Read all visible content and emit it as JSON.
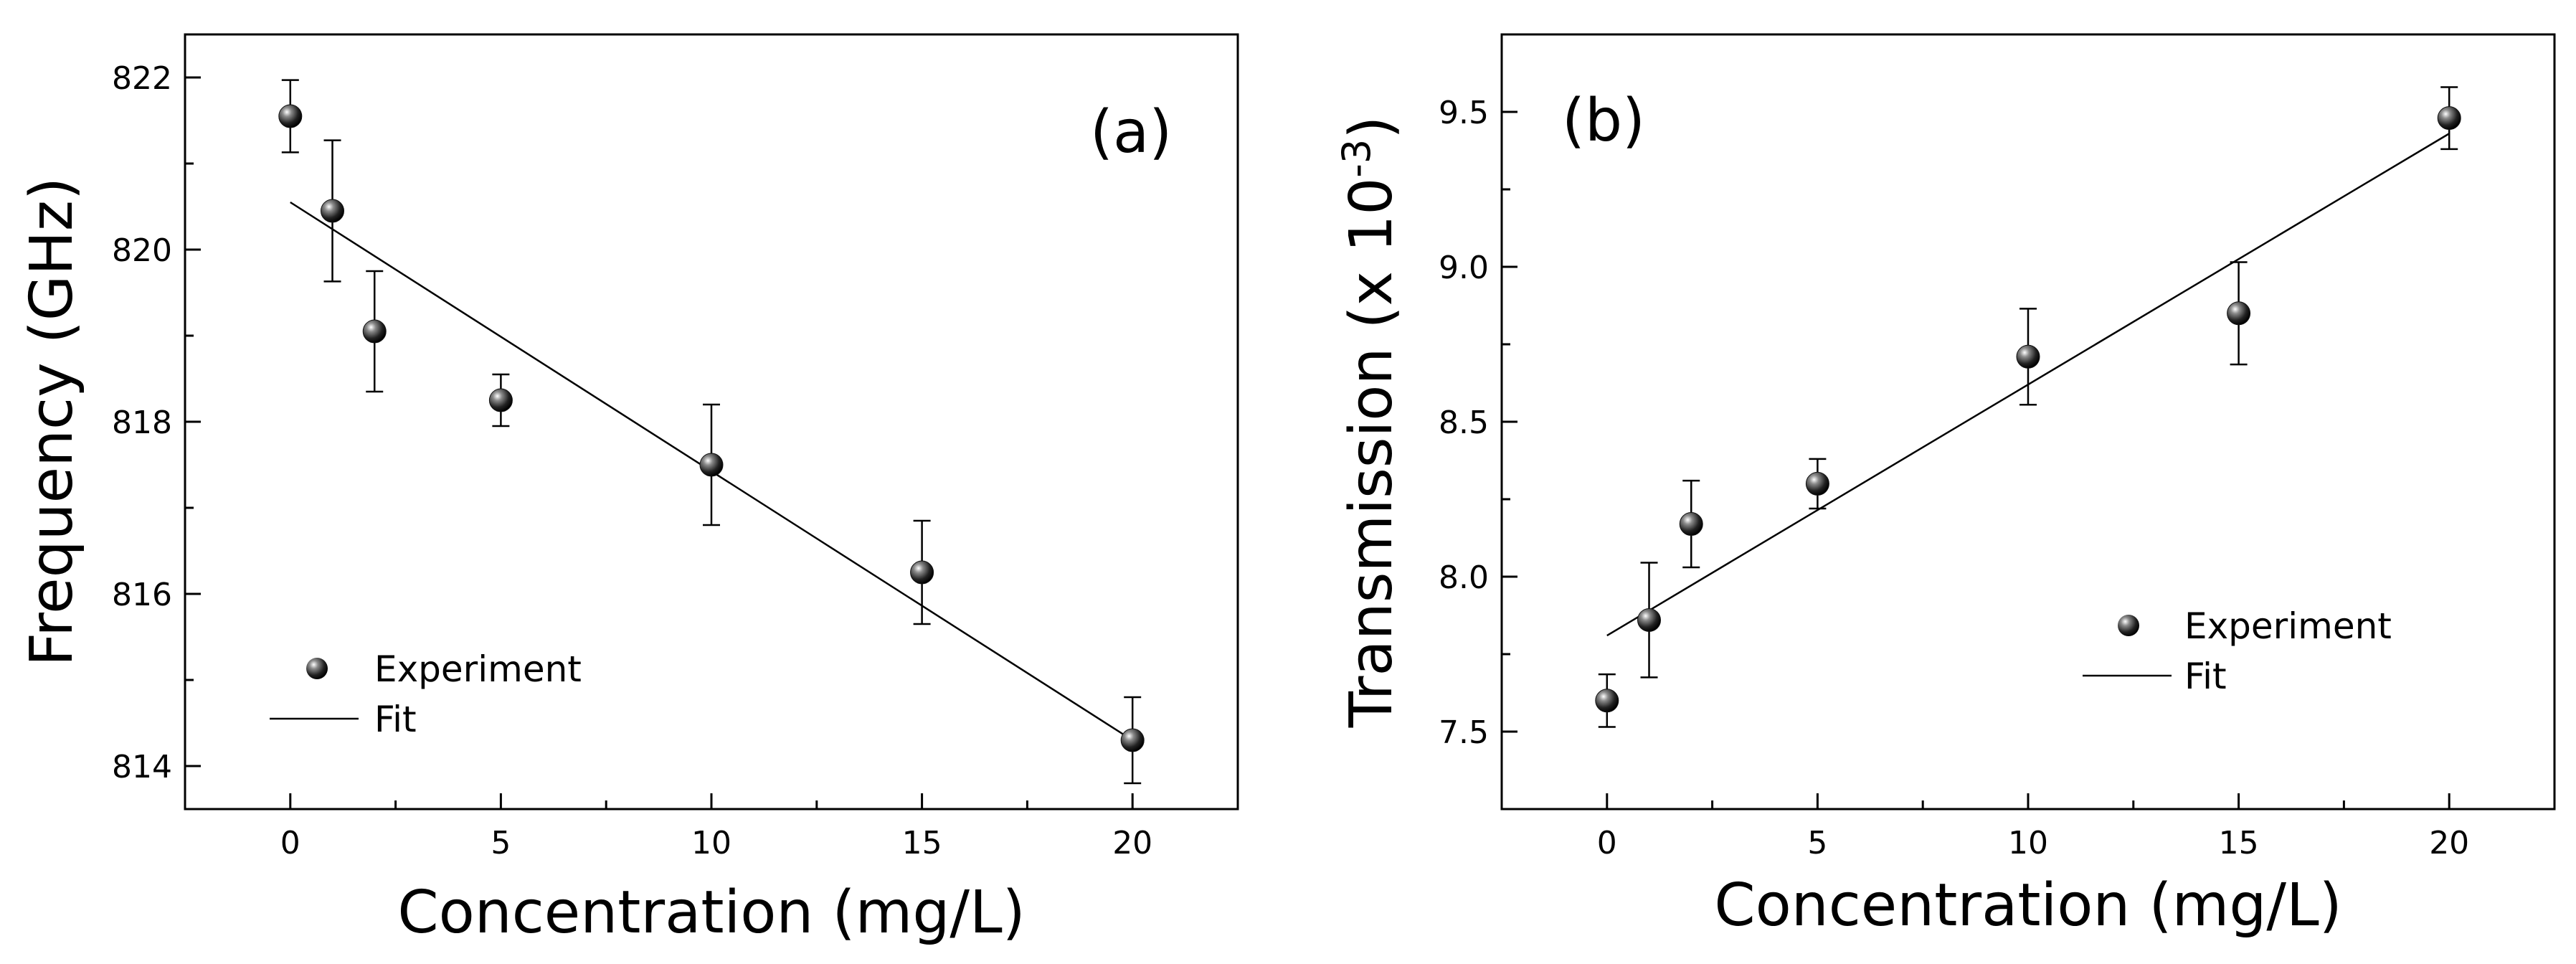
{
  "chart_data": [
    {
      "type": "scatter",
      "panel_label": "(a)",
      "xlabel": "Concentration (mg/L)",
      "ylabel": "Frequency (GHz)",
      "xlim": [
        -2.5,
        22.5
      ],
      "ylim": [
        813.5,
        822.5
      ],
      "x_ticks": [
        0,
        5,
        10,
        15,
        20
      ],
      "x_tick_labels": [
        "0",
        "5",
        "10",
        "15",
        "20"
      ],
      "y_ticks": [
        814,
        816,
        818,
        820,
        822
      ],
      "y_tick_labels": [
        "814",
        "816",
        "818",
        "820",
        "822"
      ],
      "series": [
        {
          "name": "Experiment",
          "x": [
            0,
            1,
            2,
            5,
            10,
            15,
            20
          ],
          "y": [
            821.55,
            820.45,
            819.05,
            818.25,
            817.5,
            816.25,
            814.3
          ],
          "yerr": [
            0.42,
            0.82,
            0.7,
            0.3,
            0.7,
            0.6,
            0.5
          ]
        },
        {
          "name": "Fit",
          "style": "line",
          "x": [
            0,
            20
          ],
          "y": [
            820.55,
            814.3
          ]
        }
      ],
      "legend": {
        "position": "lower-left",
        "entries": [
          "Experiment",
          "Fit"
        ]
      }
    },
    {
      "type": "scatter",
      "panel_label": "(b)",
      "xlabel": "Concentration (mg/L)",
      "ylabel_prefix": "Transmission (x 10",
      "ylabel_exponent": "-3",
      "ylabel_suffix": ")",
      "xlim": [
        -2.5,
        22.5
      ],
      "ylim": [
        7.25,
        9.75
      ],
      "x_ticks": [
        0,
        5,
        10,
        15,
        20
      ],
      "x_tick_labels": [
        "0",
        "5",
        "10",
        "15",
        "20"
      ],
      "y_ticks": [
        7.5,
        8.0,
        8.5,
        9.0,
        9.5
      ],
      "y_tick_labels": [
        "7.5",
        "8.0",
        "8.5",
        "9.0",
        "9.5"
      ],
      "series": [
        {
          "name": "Experiment",
          "x": [
            0,
            1,
            2,
            5,
            10,
            15,
            20
          ],
          "y": [
            7.6,
            7.86,
            8.17,
            8.3,
            8.71,
            8.85,
            9.48
          ],
          "yerr": [
            0.085,
            0.185,
            0.14,
            0.08,
            0.155,
            0.165,
            0.1
          ]
        },
        {
          "name": "Fit",
          "style": "line",
          "x": [
            0,
            20
          ],
          "y": [
            7.81,
            9.43
          ]
        }
      ],
      "legend": {
        "position": "lower-right",
        "entries": [
          "Experiment",
          "Fit"
        ]
      }
    }
  ]
}
